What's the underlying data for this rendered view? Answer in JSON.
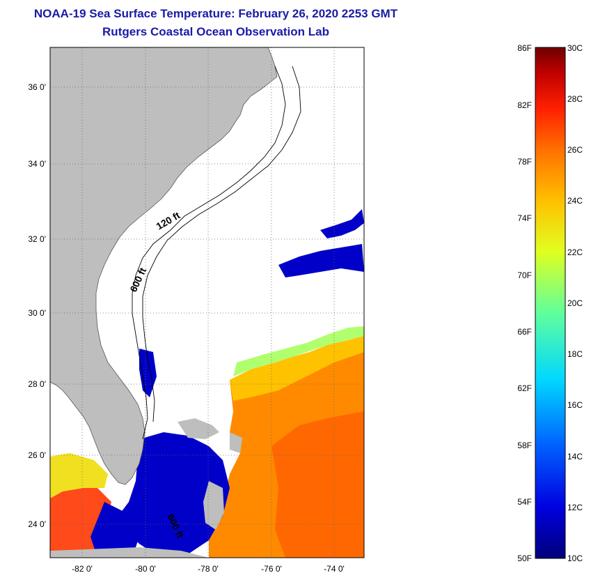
{
  "header": {
    "title": "NOAA-19 Sea Surface Temperature:  February 26, 2020 2253 GMT",
    "subtitle": "Rutgers Coastal Ocean Observation Lab"
  },
  "map": {
    "lat_labels": [
      "36 0'",
      "34 0'",
      "32 0'",
      "30 0'",
      "28 0'",
      "26 0'",
      "24 0'"
    ],
    "lon_labels": [
      "-82 0'",
      "-80 0'",
      "-78 0'",
      "-76 0'",
      "-74 0'"
    ],
    "contour_labels": [
      "120 ft",
      "600 ft",
      "600 ft"
    ],
    "colors": {
      "land": "#bebebe",
      "ocean_cloud": "#ffffff",
      "grid": "#666666"
    }
  },
  "colorbar": {
    "f_labels": [
      "86F",
      "82F",
      "78F",
      "74F",
      "70F",
      "66F",
      "62F",
      "58F",
      "54F",
      "50F"
    ],
    "c_labels": [
      "30C",
      "28C",
      "26C",
      "24C",
      "22C",
      "20C",
      "18C",
      "16C",
      "14C",
      "12C",
      "10C"
    ],
    "colors": [
      "#00007a",
      "#0000e0",
      "#0060ff",
      "#00d8ff",
      "#60ff9c",
      "#e0ff20",
      "#ffc000",
      "#ff7000",
      "#ff2000",
      "#c00000",
      "#700000"
    ]
  }
}
